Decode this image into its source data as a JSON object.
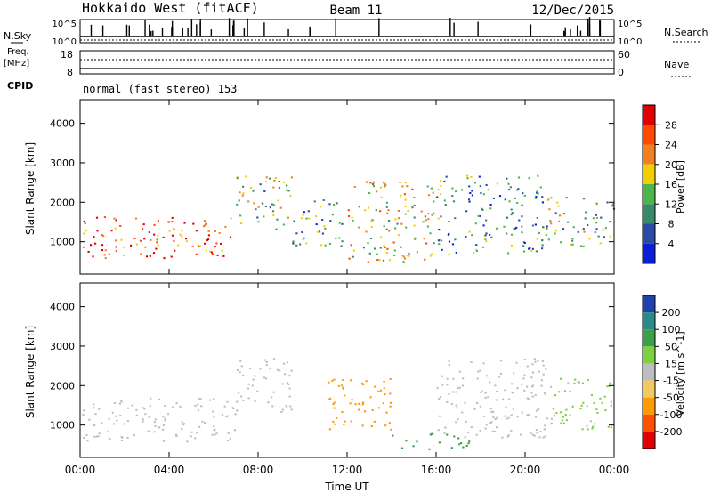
{
  "header": {
    "radar": "Hokkaido West (fitACF)",
    "beam": "Beam 11",
    "date": "12/Dec/2015"
  },
  "left_labels": {
    "nsky": "N.Sky",
    "freq": "Freq.",
    "mhz": "[MHz]",
    "cpid": "CPID"
  },
  "right_labels": {
    "nsearch": "N.Search",
    "nave": "Nave"
  },
  "noise_panel": {
    "left_ticks": [
      "10^5",
      "10^0"
    ],
    "right_ticks": [
      "10^5",
      "10^0"
    ]
  },
  "freq_panel": {
    "left_ticks": [
      "18",
      "8"
    ],
    "right_ticks": [
      "60",
      "0"
    ]
  },
  "cpid_text": "normal (fast stereo) 153",
  "colors": {
    "power": [
      "#0a1fd8",
      "#2a4aa8",
      "#3a8a6a",
      "#4cb64c",
      "#f0d000",
      "#f08020",
      "#ff4a00",
      "#e00000"
    ],
    "velocity": [
      "#e00000",
      "#ff5000",
      "#ff9a00",
      "#f2c860",
      "#bebebe",
      "#7ed040",
      "#3aa04a",
      "#2a8a8a",
      "#1e40b0"
    ]
  },
  "chart_data": [
    {
      "type": "heatmap",
      "title": "Power",
      "ylabel": "Slant Range [km]",
      "ylim": [
        180,
        4600
      ],
      "yticks": [
        "1000",
        "2000",
        "3000",
        "4000"
      ],
      "xlim_hours": [
        0,
        24
      ],
      "xticks": [
        "00:00",
        "04:00",
        "08:00",
        "12:00",
        "16:00",
        "20:00",
        "00:00"
      ],
      "colorbar": {
        "label": "Power [dB]",
        "ticks": [
          "4",
          "8",
          "12",
          "16",
          "20",
          "24",
          "28"
        ]
      },
      "regions": [
        {
          "t": [
            0.0,
            7.0
          ],
          "r": [
            600,
            1650
          ],
          "value": 26
        },
        {
          "t": [
            7.0,
            9.5
          ],
          "r": [
            1300,
            2700
          ],
          "value": 14
        },
        {
          "t": [
            9.5,
            12.0
          ],
          "r": [
            900,
            2100
          ],
          "value": 12
        },
        {
          "t": [
            12.0,
            16.0
          ],
          "r": [
            500,
            2600
          ],
          "value": 18
        },
        {
          "t": [
            16.0,
            21.0
          ],
          "r": [
            700,
            2700
          ],
          "value": 10
        },
        {
          "t": [
            21.0,
            24.0
          ],
          "r": [
            900,
            2200
          ],
          "value": 14
        }
      ]
    },
    {
      "type": "heatmap",
      "title": "Velocity",
      "ylabel": "Slant Range [km]",
      "ylim": [
        180,
        4600
      ],
      "yticks": [
        "1000",
        "2000",
        "3000",
        "4000"
      ],
      "xlim_hours": [
        0,
        24
      ],
      "xticks": [
        "00:00",
        "04:00",
        "08:00",
        "12:00",
        "16:00",
        "20:00",
        "00:00"
      ],
      "xlabel": "Time UT",
      "colorbar": {
        "label": "Velocity [m s^-1]",
        "ticks": [
          "200",
          "100",
          "50",
          "15",
          "-15",
          "-50",
          "-100",
          "-200"
        ]
      },
      "regions": [
        {
          "t": [
            0.0,
            7.0
          ],
          "r": [
            600,
            1700
          ],
          "value": 0
        },
        {
          "t": [
            7.0,
            9.5
          ],
          "r": [
            1300,
            2700
          ],
          "value": 0
        },
        {
          "t": [
            11.0,
            14.0
          ],
          "r": [
            900,
            2200
          ],
          "value": -90
        },
        {
          "t": [
            14.0,
            17.5
          ],
          "r": [
            400,
            800
          ],
          "value": 60
        },
        {
          "t": [
            16.0,
            21.0
          ],
          "r": [
            700,
            2700
          ],
          "value": 0
        },
        {
          "t": [
            21.0,
            24.0
          ],
          "r": [
            900,
            2200
          ],
          "value": 20
        }
      ]
    }
  ]
}
